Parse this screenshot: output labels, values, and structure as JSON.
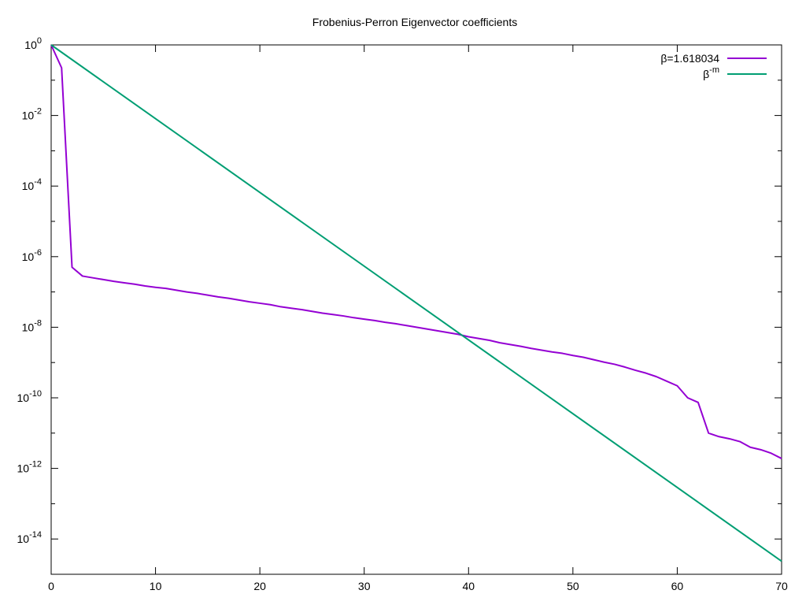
{
  "chart_data": {
    "type": "line",
    "title": "Frobenius-Perron Eigenvector coefficients",
    "xlabel": "",
    "ylabel": "",
    "xlim": [
      0,
      70
    ],
    "ylim": [
      -15,
      0
    ],
    "yscale": "log10",
    "grid": false,
    "legend_position": "top-right",
    "x_ticks": [
      {
        "value": 0,
        "label": "0"
      },
      {
        "value": 10,
        "label": "10"
      },
      {
        "value": 20,
        "label": "20"
      },
      {
        "value": 30,
        "label": "30"
      },
      {
        "value": 40,
        "label": "40"
      },
      {
        "value": 50,
        "label": "50"
      },
      {
        "value": 60,
        "label": "60"
      },
      {
        "value": 70,
        "label": "70"
      }
    ],
    "y_ticks": [
      {
        "exp": 0,
        "base": "10",
        "sup": "0"
      },
      {
        "exp": -2,
        "base": "10",
        "sup": "-2"
      },
      {
        "exp": -4,
        "base": "10",
        "sup": "-4"
      },
      {
        "exp": -6,
        "base": "10",
        "sup": "-6"
      },
      {
        "exp": -8,
        "base": "10",
        "sup": "-8"
      },
      {
        "exp": -10,
        "base": "10",
        "sup": "-10"
      },
      {
        "exp": -12,
        "base": "10",
        "sup": "-12"
      },
      {
        "exp": -14,
        "base": "10",
        "sup": "-14"
      }
    ],
    "series": [
      {
        "name": "β=1.618034",
        "label_main": "β=1.618034",
        "label_sup": "",
        "color": "#9400d3",
        "x": [
          0,
          1,
          2,
          3,
          4,
          5,
          6,
          7,
          8,
          9,
          10,
          11,
          12,
          13,
          14,
          15,
          16,
          17,
          18,
          19,
          20,
          21,
          22,
          23,
          24,
          25,
          26,
          27,
          28,
          29,
          30,
          31,
          32,
          33,
          34,
          35,
          36,
          37,
          38,
          39,
          40,
          41,
          42,
          43,
          44,
          45,
          46,
          47,
          48,
          49,
          50,
          51,
          52,
          53,
          54,
          55,
          56,
          57,
          58,
          59,
          60,
          61,
          62,
          63,
          64,
          65,
          66,
          67,
          68,
          69,
          70
        ],
        "log10_y": [
          0,
          -0.65,
          -6.3,
          -6.55,
          -6.6,
          -6.65,
          -6.7,
          -6.74,
          -6.78,
          -6.83,
          -6.87,
          -6.9,
          -6.95,
          -7.0,
          -7.04,
          -7.09,
          -7.14,
          -7.18,
          -7.23,
          -7.28,
          -7.32,
          -7.36,
          -7.42,
          -7.46,
          -7.5,
          -7.55,
          -7.6,
          -7.64,
          -7.68,
          -7.73,
          -7.77,
          -7.81,
          -7.86,
          -7.9,
          -7.95,
          -8.0,
          -8.05,
          -8.1,
          -8.15,
          -8.2,
          -8.27,
          -8.32,
          -8.37,
          -8.44,
          -8.49,
          -8.54,
          -8.6,
          -8.65,
          -8.7,
          -8.74,
          -8.8,
          -8.85,
          -8.92,
          -8.99,
          -9.05,
          -9.13,
          -9.22,
          -9.3,
          -9.4,
          -9.53,
          -9.66,
          -10.0,
          -10.13,
          -11.0,
          -11.1,
          -11.16,
          -11.24,
          -11.4,
          -11.47,
          -11.57,
          -11.72
        ]
      },
      {
        "name": "β^-m",
        "label_main": "β",
        "label_sup": "-m",
        "color": "#009e73",
        "x": [
          0,
          70
        ],
        "log10_y": [
          0,
          -14.63
        ],
        "formula": "y = 1.618034^(-m)"
      }
    ]
  }
}
